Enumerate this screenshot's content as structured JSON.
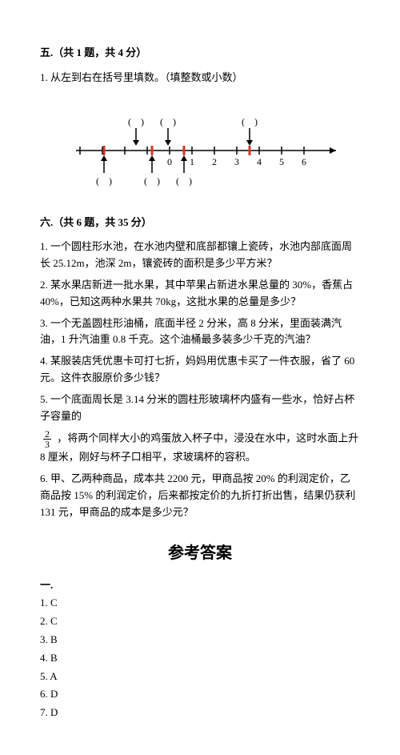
{
  "section5": {
    "header": "五.（共 1 题，共 4 分）",
    "q1": "1. 从左到右在括号里填数。（填整数或小数）",
    "numberline": {
      "ticks": [
        "0",
        "1",
        "2",
        "3",
        "4",
        "5",
        "6"
      ],
      "left_ticks": 4,
      "arrows_down_x": [
        90,
        130,
        232
      ],
      "arrows_up_x": [
        50,
        110,
        150
      ],
      "red_ticks_x": [
        50,
        110,
        150,
        232
      ],
      "colors": {
        "line": "#000",
        "red": "#d4352b"
      }
    }
  },
  "section6": {
    "header": "六.（共 6 题，共 35 分）",
    "q1": "1. 一个圆柱形水池，在水池内壁和底部都镶上瓷砖，水池内部底面周长 25.12m，池深 2m，镶瓷砖的面积是多少平方米？",
    "q2": "2. 某水果店新进一批水果，其中苹果占新进水果总量的 30%，香蕉占 40%，已知这两种水果共 70kg，这批水果的总量是多少？",
    "q3": "3. 一个无盖圆柱形油桶，底面半径 2 分米，高 8 分米，里面装满汽油，1 升汽油重 0.8 千克。这个油桶最多装多少千克的汽油？",
    "q4": "4. 某服装店凭优惠卡可打七折，妈妈用优惠卡买了一件衣服，省了 60 元。这件衣服原价多少钱？",
    "q5a": "5. 一个底面周长是 3.14 分米的圆柱形玻璃杯内盛有一些水，恰好占杯子容量的",
    "q5_frac_num": "2",
    "q5_frac_den": "3",
    "q5b": "，将两个同样大小的鸡蛋放入杯子中，浸没在水中，这时水面上升 8 厘米，刚好与杯子口相平，求玻璃杯的容积。",
    "q6": "6. 甲、乙两种商品，成本共 2200 元，甲商品按 20% 的利润定价，乙商品按 15% 的利润定价，后来都按定价的九折打折出售，结果仍获利 131 元，甲商品的成本是多少元？"
  },
  "answers": {
    "title": "参考答案",
    "group": "一.",
    "items": [
      "1. C",
      "2. C",
      "3. B",
      "4. B",
      "5. A",
      "6. D",
      "7. D"
    ]
  }
}
